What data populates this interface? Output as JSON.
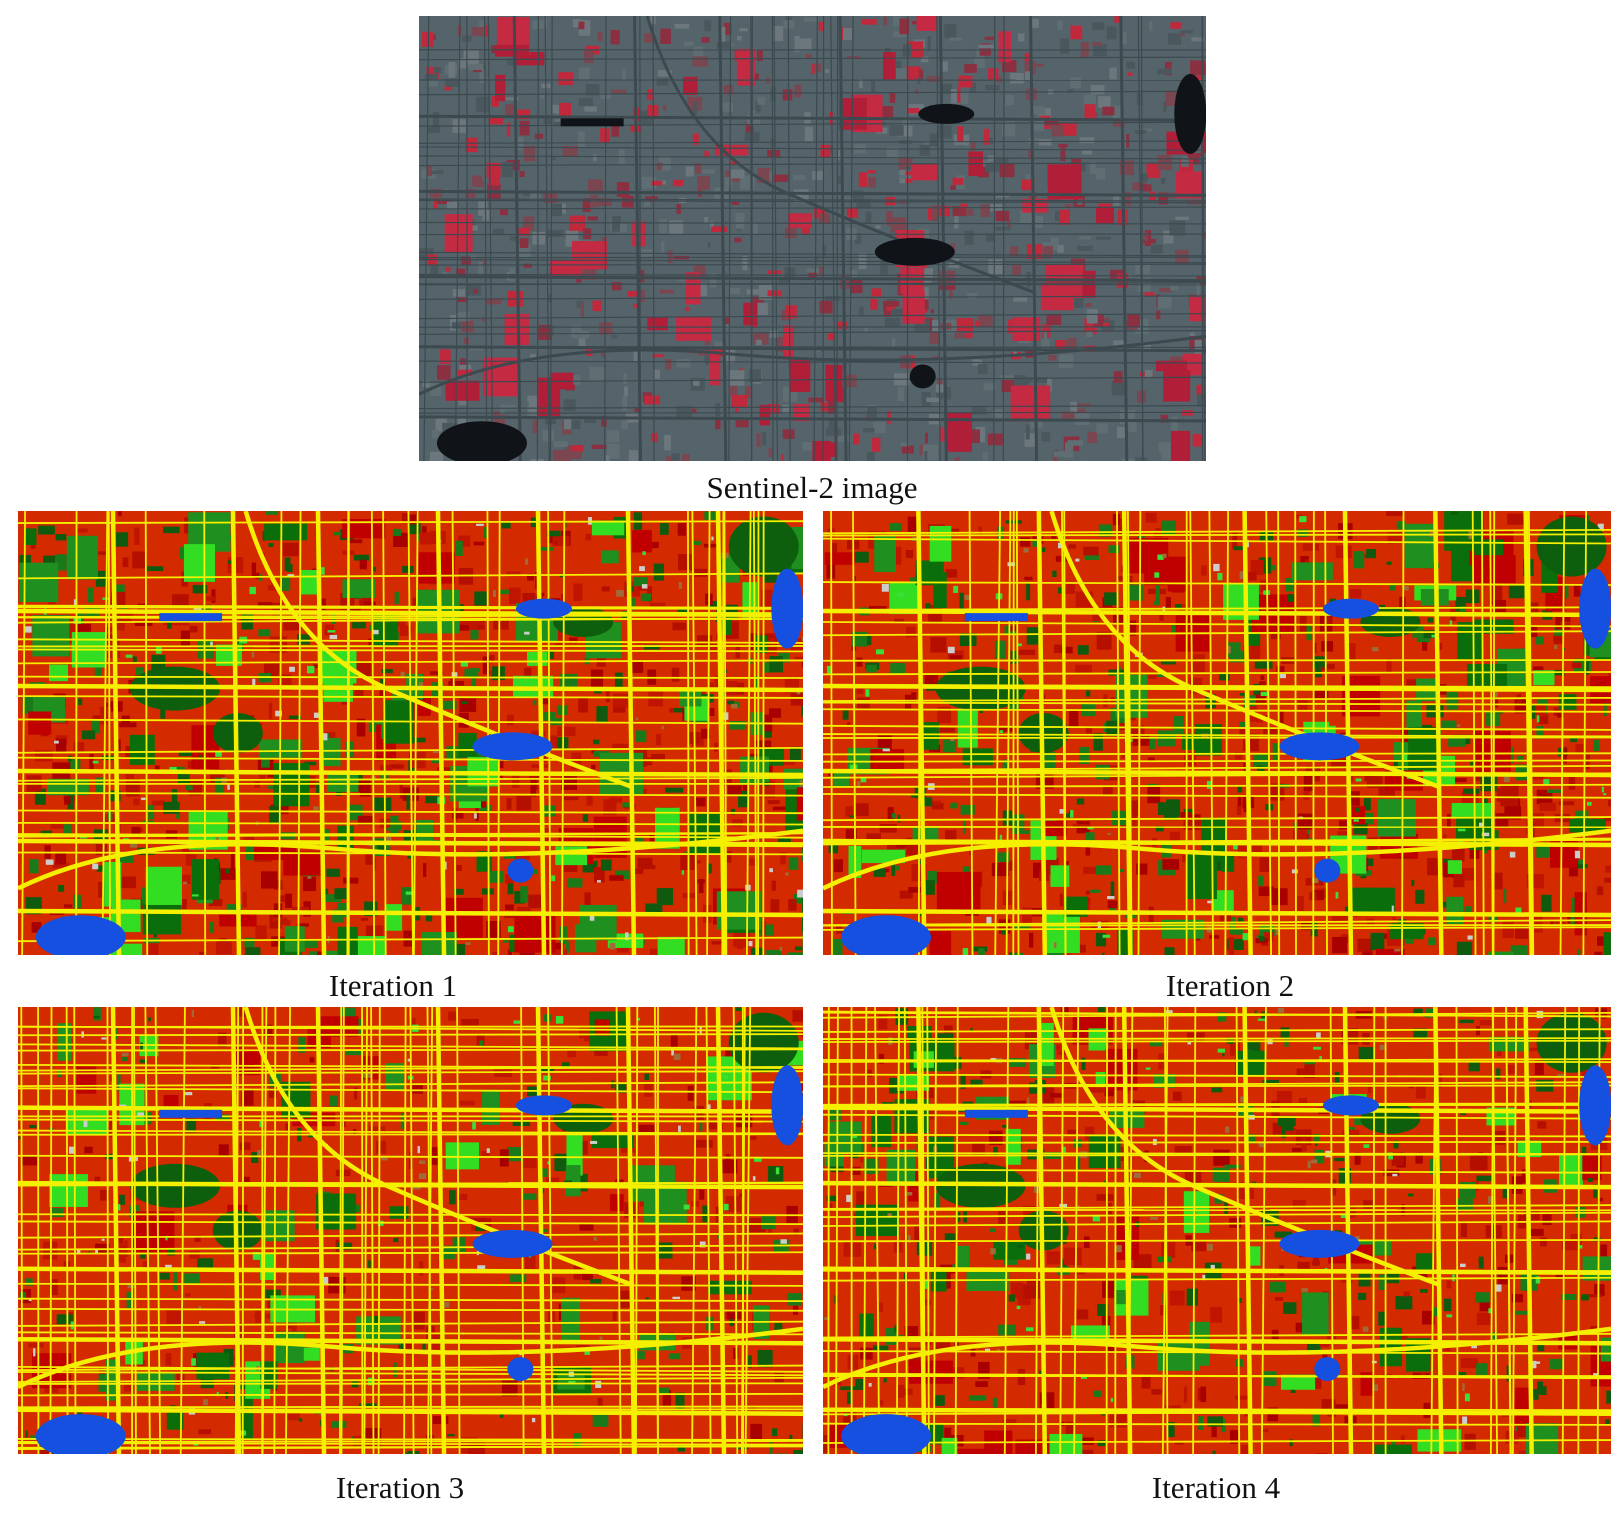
{
  "figure": {
    "image_caption": "Sentinel-2 image",
    "panels": [
      {
        "caption": "Iteration 1"
      },
      {
        "caption": "Iteration 2"
      },
      {
        "caption": "Iteration 3"
      },
      {
        "caption": "Iteration 4"
      }
    ]
  }
}
